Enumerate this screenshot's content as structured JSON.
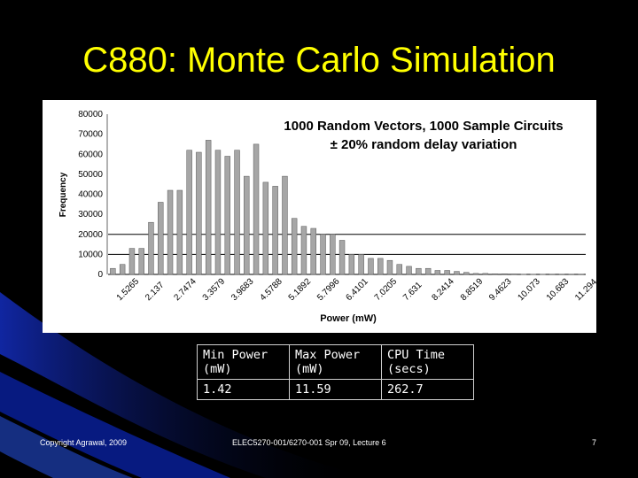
{
  "slide": {
    "title": "C880: Monte Carlo Simulation",
    "footer_left": "Copyright Agrawal, 2009",
    "footer_center": "ELEC5270-001/6270-001 Spr 09, Lecture 6",
    "page_number": "7"
  },
  "chart_data": {
    "type": "bar",
    "title_lines": [
      "1000 Random Vectors, 1000 Sample Circuits",
      "± 20% random delay variation"
    ],
    "xlabel": "Power (mW)",
    "ylabel": "Frequency",
    "ylim": [
      0,
      80000
    ],
    "yticks": [
      "0",
      "10000",
      "20000",
      "30000",
      "40000",
      "50000",
      "60000",
      "70000",
      "80000"
    ],
    "xtick_labels": [
      "1.5265",
      "2.137",
      "2.7474",
      "3.3579",
      "3.9683",
      "4.5788",
      "5.1892",
      "5.7996",
      "6.4101",
      "7.0205",
      "7.631",
      "8.2414",
      "8.8519",
      "9.4623",
      "10.073",
      "10.683",
      "11.294"
    ],
    "bar_color": "#a6a6a6",
    "reference_lines": [
      0,
      10000,
      20000
    ],
    "values": [
      3000,
      5000,
      13000,
      13000,
      26000,
      36000,
      42000,
      42000,
      62000,
      61000,
      67000,
      62000,
      59000,
      62000,
      49000,
      65000,
      46000,
      44000,
      49000,
      28000,
      24000,
      23000,
      20000,
      20000,
      17000,
      10000,
      10000,
      8000,
      8000,
      7000,
      5000,
      4000,
      3000,
      3000,
      2000,
      2000,
      1500,
      1000,
      500,
      500,
      300,
      300,
      200,
      100,
      100,
      100,
      50,
      50,
      50,
      50
    ]
  },
  "table": {
    "headers": [
      "Min Power (mW)",
      "Max Power (mW)",
      "CPU Time (secs)"
    ],
    "values": [
      "1.42",
      "11.59",
      "262.7"
    ]
  }
}
